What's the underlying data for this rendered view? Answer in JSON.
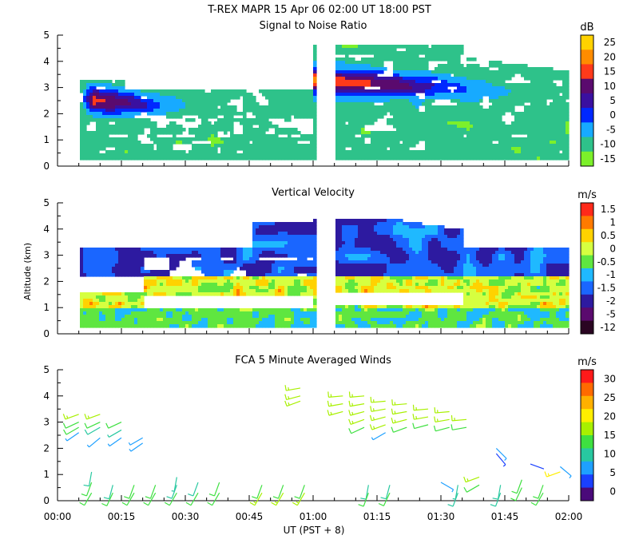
{
  "title": "T-REX   MAPR 15 Apr 06   02:00 UT   18:00   PST",
  "xlabel": "UT  (PST + 8)",
  "xticks": [
    "00:00",
    "00:15",
    "00:30",
    "00:45",
    "01:00",
    "01:15",
    "01:30",
    "01:45",
    "02:00"
  ],
  "ylabel": "Altitude (km)",
  "chart_data": [
    {
      "type": "heatmap",
      "title": "Signal to Noise Ratio",
      "ylabel": "Altitude (km)",
      "xlim": [
        0,
        120
      ],
      "ylim": [
        0,
        5
      ],
      "yticks": [
        "0",
        "1",
        "2",
        "3",
        "4",
        "5"
      ],
      "data_gap_minutes": [
        60,
        65
      ],
      "colorbar": {
        "unit": "dB",
        "labels": [
          "25",
          "20",
          "15",
          "10",
          "5",
          "0",
          "-5",
          "-10",
          "-15"
        ],
        "colors": [
          "#ffd200",
          "#ff8c00",
          "#ff3a1a",
          "#5a0a6e",
          "#3a10a0",
          "#0028ff",
          "#17aaff",
          "#2ec28a",
          "#7cf02a"
        ]
      }
    },
    {
      "type": "heatmap",
      "title": "Vertical Velocity",
      "ylabel": "Altitude (km)",
      "xlim": [
        0,
        120
      ],
      "ylim": [
        0,
        5
      ],
      "yticks": [
        "0",
        "1",
        "2",
        "3",
        "4",
        "5"
      ],
      "data_gap_minutes": [
        60,
        65
      ],
      "colorbar": {
        "unit": "m/s",
        "labels": [
          "1.5",
          "1",
          "0.5",
          "0",
          "-0.5",
          "-1",
          "-1.5",
          "-2",
          "-5",
          "-12"
        ],
        "colors": [
          "#ff2a1a",
          "#ff7a00",
          "#ffd200",
          "#d6ff40",
          "#5fe640",
          "#1fb9ff",
          "#1a66ff",
          "#2d1aa0",
          "#5a0a6e",
          "#2a0522"
        ]
      }
    },
    {
      "type": "scatter",
      "title": "FCA 5 Minute Averaged Winds",
      "ylabel": "Altitude (km)",
      "xlim": [
        0,
        120
      ],
      "ylim": [
        0,
        5
      ],
      "yticks": [
        "0",
        "1",
        "2",
        "3",
        "4",
        "5"
      ],
      "colorbar": {
        "unit": "m/s",
        "labels": [
          "30",
          "25",
          "20",
          "15",
          "10",
          "5",
          "0"
        ],
        "colors": [
          "#ff1a1a",
          "#ff6a00",
          "#ffb000",
          "#ffee00",
          "#a8f000",
          "#3ee040",
          "#28c8a0",
          "#1ea0ff",
          "#1a40ff",
          "#4a0a7a"
        ]
      },
      "barbs": [
        {
          "t": 5,
          "alt": [
            3.3,
            3.0,
            2.8,
            2.6
          ],
          "speed": [
            16,
            14,
            12,
            8
          ],
          "dir": [
            250,
            245,
            240,
            235
          ]
        },
        {
          "t": 10,
          "alt": [
            3.3,
            3.0,
            2.8,
            2.4
          ],
          "speed": [
            15,
            13,
            10,
            6
          ],
          "dir": [
            250,
            245,
            240,
            230
          ]
        },
        {
          "t": 15,
          "alt": [
            3.0,
            2.7,
            2.4
          ],
          "speed": [
            12,
            9,
            6
          ],
          "dir": [
            245,
            240,
            235
          ]
        },
        {
          "t": 20,
          "alt": [
            2.4,
            2.2
          ],
          "speed": [
            7,
            6
          ],
          "dir": [
            240,
            235
          ]
        },
        {
          "t": 8,
          "alt": [
            1.1,
            0.7,
            0.3
          ],
          "speed": [
            10,
            12,
            14
          ],
          "dir": [
            190,
            200,
            210
          ]
        },
        {
          "t": 13,
          "alt": [
            0.6,
            0.3
          ],
          "speed": [
            11,
            13
          ],
          "dir": [
            195,
            205
          ]
        },
        {
          "t": 18,
          "alt": [
            0.6,
            0.3
          ],
          "speed": [
            12,
            14
          ],
          "dir": [
            200,
            210
          ]
        },
        {
          "t": 23,
          "alt": [
            0.6,
            0.3
          ],
          "speed": [
            12,
            14
          ],
          "dir": [
            200,
            210
          ]
        },
        {
          "t": 28,
          "alt": [
            0.9,
            0.6,
            0.3
          ],
          "speed": [
            9,
            11,
            13
          ],
          "dir": [
            190,
            200,
            210
          ]
        },
        {
          "t": 33,
          "alt": [
            0.7,
            0.3
          ],
          "speed": [
            11,
            13
          ],
          "dir": [
            200,
            210
          ]
        },
        {
          "t": 38,
          "alt": [
            0.7,
            0.3
          ],
          "speed": [
            12,
            14
          ],
          "dir": [
            200,
            210
          ]
        },
        {
          "t": 48,
          "alt": [
            0.6,
            0.3
          ],
          "speed": [
            14,
            15
          ],
          "dir": [
            200,
            210
          ]
        },
        {
          "t": 53,
          "alt": [
            0.6,
            0.3
          ],
          "speed": [
            14,
            15
          ],
          "dir": [
            200,
            210
          ]
        },
        {
          "t": 58,
          "alt": [
            0.6,
            0.3
          ],
          "speed": [
            14,
            15
          ],
          "dir": [
            200,
            210
          ]
        },
        {
          "t": 57,
          "alt": [
            4.3,
            4.0,
            3.8
          ],
          "speed": [
            15,
            16,
            17
          ],
          "dir": [
            260,
            255,
            250
          ]
        },
        {
          "t": 67,
          "alt": [
            4.0,
            3.7,
            3.4
          ],
          "speed": [
            16,
            17,
            17
          ],
          "dir": [
            265,
            260,
            255
          ]
        },
        {
          "t": 72,
          "alt": [
            4.0,
            3.7,
            3.4,
            3.1,
            2.8
          ],
          "speed": [
            17,
            17,
            16,
            15,
            14
          ],
          "dir": [
            265,
            260,
            255,
            250,
            245
          ]
        },
        {
          "t": 77,
          "alt": [
            3.8,
            3.5,
            3.2,
            2.9,
            2.6
          ],
          "speed": [
            17,
            16,
            16,
            15,
            8
          ],
          "dir": [
            265,
            260,
            255,
            250,
            240
          ]
        },
        {
          "t": 82,
          "alt": [
            3.7,
            3.4,
            3.1,
            2.8
          ],
          "speed": [
            17,
            16,
            15,
            14
          ],
          "dir": [
            265,
            260,
            255,
            250
          ]
        },
        {
          "t": 87,
          "alt": [
            3.5,
            3.2,
            2.9
          ],
          "speed": [
            16,
            15,
            14
          ],
          "dir": [
            265,
            260,
            255
          ]
        },
        {
          "t": 92,
          "alt": [
            3.4,
            3.1,
            2.8
          ],
          "speed": [
            16,
            15,
            14
          ],
          "dir": [
            265,
            260,
            255
          ]
        },
        {
          "t": 96,
          "alt": [
            3.1,
            2.8
          ],
          "speed": [
            15,
            14
          ],
          "dir": [
            265,
            260
          ]
        },
        {
          "t": 73,
          "alt": [
            0.6,
            0.3
          ],
          "speed": [
            10,
            12
          ],
          "dir": [
            190,
            200
          ]
        },
        {
          "t": 78,
          "alt": [
            0.6,
            0.3
          ],
          "speed": [
            11,
            12
          ],
          "dir": [
            195,
            205
          ]
        },
        {
          "t": 90,
          "alt": [
            0.7
          ],
          "speed": [
            6
          ],
          "dir": [
            120
          ]
        },
        {
          "t": 94,
          "alt": [
            0.6,
            0.3
          ],
          "speed": [
            9,
            10
          ],
          "dir": [
            190,
            200
          ]
        },
        {
          "t": 99,
          "alt": [
            0.9,
            0.6
          ],
          "speed": [
            15,
            14
          ],
          "dir": [
            250,
            240
          ]
        },
        {
          "t": 103,
          "alt": [
            1.8,
            2.0
          ],
          "speed": [
            5,
            6
          ],
          "dir": [
            140,
            135
          ]
        },
        {
          "t": 104,
          "alt": [
            0.6,
            0.3
          ],
          "speed": [
            10,
            11
          ],
          "dir": [
            190,
            200
          ]
        },
        {
          "t": 109,
          "alt": [
            0.8,
            0.5
          ],
          "speed": [
            12,
            12
          ],
          "dir": [
            200,
            205
          ]
        },
        {
          "t": 111,
          "alt": [
            1.4
          ],
          "speed": [
            4
          ],
          "dir": [
            110
          ]
        },
        {
          "t": 114,
          "alt": [
            0.6,
            0.3
          ],
          "speed": [
            12,
            13
          ],
          "dir": [
            200,
            210
          ]
        },
        {
          "t": 118,
          "alt": [
            1.1,
            1.3
          ],
          "speed": [
            18,
            6
          ],
          "dir": [
            250,
            130
          ]
        }
      ]
    }
  ]
}
